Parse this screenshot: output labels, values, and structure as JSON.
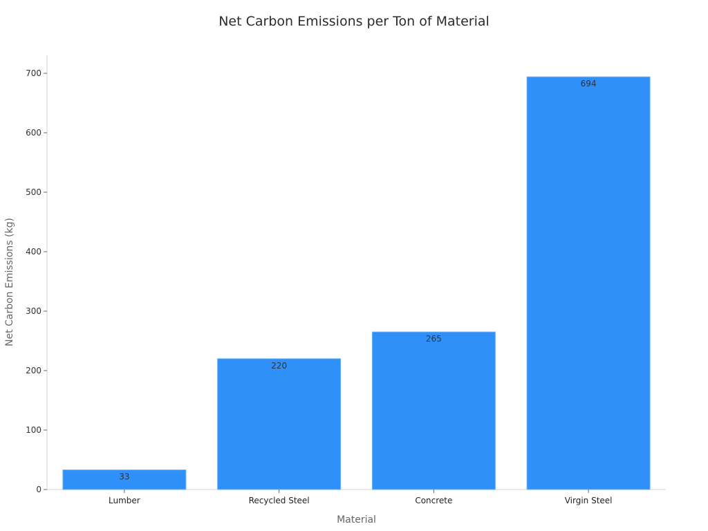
{
  "chart_data": {
    "type": "bar",
    "title": "Net Carbon Emissions per Ton of Material",
    "xlabel": "Material",
    "ylabel": "Net Carbon Emissions (kg)",
    "categories": [
      "Lumber",
      "Recycled Steel",
      "Concrete",
      "Virgin Steel"
    ],
    "values": [
      33,
      220,
      265,
      694
    ],
    "data_labels": [
      "33",
      "220",
      "265",
      "694"
    ],
    "ylim": [
      0,
      700
    ],
    "yticks": [
      0,
      100,
      200,
      300,
      400,
      500,
      600,
      700
    ],
    "grid": false,
    "bar_color": "#2e90f8"
  }
}
